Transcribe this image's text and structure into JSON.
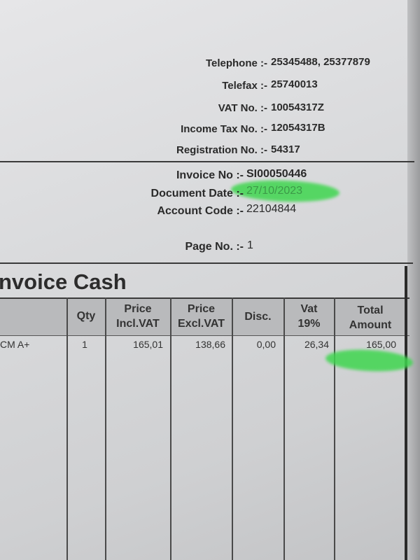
{
  "company_info": [
    {
      "label": "Telephone :-",
      "value": "25345488, 25377879"
    },
    {
      "label": "Telefax :-",
      "value": "25740013"
    },
    {
      "label": "VAT No. :-",
      "value": "10054317Z"
    },
    {
      "label": "Income Tax No. :-",
      "value": "12054317B"
    },
    {
      "label": "Registration No. :-",
      "value": "54317"
    }
  ],
  "invoice_info": {
    "invoice_no_label": "Invoice No :-",
    "invoice_no": "SI00050446",
    "date_label": "Document Date :-",
    "date": "27/10/2023",
    "account_label": "Account Code :-",
    "account": "22104844",
    "page_label": "Page No. :-",
    "page": "1"
  },
  "title": "nvoice Cash",
  "highlight_color": "#3fd64f",
  "table": {
    "headers": [
      "",
      "Qty",
      "Price\nIncl.VAT",
      "Price\nExcl.VAT",
      "Disc.",
      "Vat\n19%",
      "Total\nAmount"
    ],
    "rows": [
      [
        "CM A+",
        "1",
        "165,01",
        "138,66",
        "0,00",
        "26,34",
        "165,00"
      ]
    ]
  }
}
